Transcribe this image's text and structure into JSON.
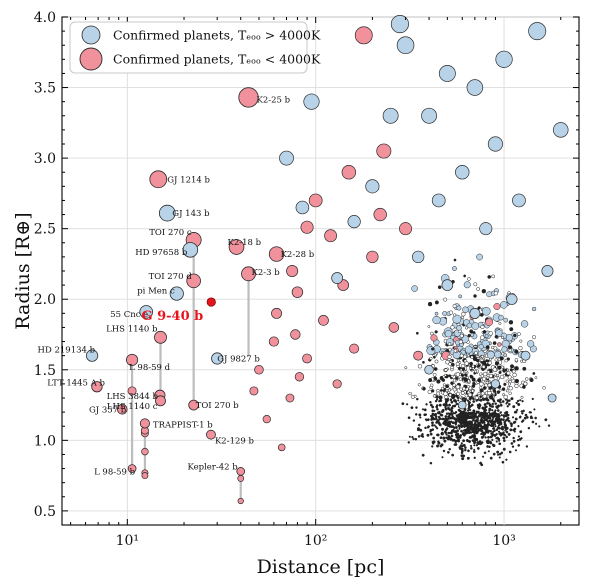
{
  "chart_data": {
    "type": "scatter",
    "x_scale": "log",
    "xlim": [
      4.5,
      2500
    ],
    "ylim": [
      0.4,
      4.0
    ],
    "grid": true,
    "xlabel": "Distance [pc]",
    "ylabel": "Radius [R⊕]",
    "xticks": [
      {
        "value": 10,
        "label": "10¹"
      },
      {
        "value": 100,
        "label": "10²"
      },
      {
        "value": 1000,
        "label": "10³"
      }
    ],
    "yticks": [
      0.5,
      1.0,
      1.5,
      2.0,
      2.5,
      3.0,
      3.5,
      4.0
    ],
    "legend": {
      "position": "top-left",
      "entries": [
        {
          "label": "Confirmed planets, Tₑₒₒ > 4000K",
          "color": "#b8d2e8"
        },
        {
          "label": "Confirmed planets, Tₑₒₒ < 4000K",
          "color": "#f0919c"
        }
      ]
    },
    "colors": {
      "hot": "#b8d2e8",
      "cool": "#f0919c",
      "highlight": "#e8141c",
      "edge": "#2b2b2b",
      "connector": "#bdbdbd"
    },
    "highlight": {
      "name": "G 9-40 b",
      "x": 27.9,
      "y": 1.98
    },
    "labeled_planets": [
      {
        "name": "K2-25 b",
        "x": 44,
        "y": 3.43,
        "cool": true
      },
      {
        "name": "GJ 1214 b",
        "x": 14.6,
        "y": 2.85,
        "cool": true
      },
      {
        "name": "GJ 143 b",
        "x": 16.3,
        "y": 2.61,
        "cool": false
      },
      {
        "name": "TOI 270 c",
        "x": 22.5,
        "y": 2.42,
        "cool": true
      },
      {
        "name": "HD 97658 b",
        "x": 21.6,
        "y": 2.35,
        "cool": false
      },
      {
        "name": "K2-18 b",
        "x": 38,
        "y": 2.37,
        "cool": true
      },
      {
        "name": "K2-28 b",
        "x": 62,
        "y": 2.32,
        "cool": true
      },
      {
        "name": "TOI 270 d",
        "x": 22.5,
        "y": 2.13,
        "cool": true
      },
      {
        "name": "K2-3 b",
        "x": 44,
        "y": 2.18,
        "cool": true
      },
      {
        "name": "pi Men c",
        "x": 18.3,
        "y": 2.04,
        "cool": false
      },
      {
        "name": "55 Cnc e",
        "x": 12.6,
        "y": 1.91,
        "cool": false
      },
      {
        "name": "LHS 1140 b",
        "x": 15.0,
        "y": 1.73,
        "cool": true
      },
      {
        "name": "GJ 9827 b",
        "x": 30,
        "y": 1.58,
        "cool": false
      },
      {
        "name": "HD 219134 b",
        "x": 6.5,
        "y": 1.6,
        "cool": false
      },
      {
        "name": "L 98-59 d",
        "x": 10.6,
        "y": 1.57,
        "cool": true
      },
      {
        "name": "LTT 1445 A b",
        "x": 6.9,
        "y": 1.38,
        "cool": true
      },
      {
        "name": "LHS 3844 b",
        "x": 14.9,
        "y": 1.32,
        "cool": true
      },
      {
        "name": "GJ 357 b",
        "x": 9.4,
        "y": 1.22,
        "cool": true
      },
      {
        "name": "LHS 1140 c",
        "x": 15.0,
        "y": 1.28,
        "cool": true
      },
      {
        "name": "TOI 270 b",
        "x": 22.5,
        "y": 1.25,
        "cool": true
      },
      {
        "name": "TRAPPIST-1 b",
        "x": 12.4,
        "y": 1.12,
        "cool": true
      },
      {
        "name": "K2-129 b",
        "x": 27.8,
        "y": 1.04,
        "cool": true
      },
      {
        "name": "L 98-59 b",
        "x": 10.6,
        "y": 0.8,
        "cool": true
      },
      {
        "name": "Kepler-42 b",
        "x": 40,
        "y": 0.78,
        "cool": true
      }
    ],
    "unlabeled_planets": [
      {
        "x": 12.4,
        "y": 1.05,
        "cool": true
      },
      {
        "x": 12.4,
        "y": 1.07,
        "cool": true
      },
      {
        "x": 12.4,
        "y": 0.92,
        "cool": true
      },
      {
        "x": 12.4,
        "y": 0.77,
        "cool": true
      },
      {
        "x": 12.4,
        "y": 0.75,
        "cool": true
      },
      {
        "x": 10.6,
        "y": 1.35,
        "cool": true
      },
      {
        "x": 40,
        "y": 0.73,
        "cool": true
      },
      {
        "x": 40,
        "y": 0.57,
        "cool": true
      },
      {
        "x": 180,
        "y": 3.87,
        "cool": true
      },
      {
        "x": 90,
        "y": 2.51,
        "cool": true
      },
      {
        "x": 75,
        "y": 2.2,
        "cool": true
      },
      {
        "x": 80,
        "y": 2.05,
        "cool": true
      },
      {
        "x": 62,
        "y": 1.9,
        "cool": true
      },
      {
        "x": 78,
        "y": 1.75,
        "cool": true
      },
      {
        "x": 90,
        "y": 1.58,
        "cool": true
      },
      {
        "x": 82,
        "y": 1.45,
        "cool": true
      },
      {
        "x": 73,
        "y": 1.3,
        "cool": true
      },
      {
        "x": 110,
        "y": 1.85,
        "cool": true
      },
      {
        "x": 150,
        "y": 2.9,
        "cool": true
      },
      {
        "x": 230,
        "y": 3.05,
        "cool": true
      },
      {
        "x": 100,
        "y": 2.7,
        "cool": true
      },
      {
        "x": 140,
        "y": 2.1,
        "cool": true
      },
      {
        "x": 200,
        "y": 2.3,
        "cool": true
      },
      {
        "x": 160,
        "y": 1.65,
        "cool": true
      },
      {
        "x": 130,
        "y": 1.4,
        "cool": true
      },
      {
        "x": 50,
        "y": 1.5,
        "cool": true
      },
      {
        "x": 55,
        "y": 1.15,
        "cool": true
      },
      {
        "x": 66,
        "y": 0.95,
        "cool": true
      },
      {
        "x": 300,
        "y": 2.5,
        "cool": true
      },
      {
        "x": 260,
        "y": 1.8,
        "cool": true
      },
      {
        "x": 60,
        "y": 1.7,
        "cool": true
      },
      {
        "x": 47,
        "y": 1.35,
        "cool": true
      },
      {
        "x": 120,
        "y": 2.45,
        "cool": true
      },
      {
        "x": 220,
        "y": 2.6,
        "cool": true
      },
      {
        "x": 350,
        "y": 1.6,
        "cool": true
      },
      {
        "x": 300,
        "y": 3.8,
        "cool": false
      },
      {
        "x": 500,
        "y": 3.6,
        "cool": false
      },
      {
        "x": 400,
        "y": 3.3,
        "cool": false
      },
      {
        "x": 700,
        "y": 3.5,
        "cool": false
      },
      {
        "x": 1000,
        "y": 3.7,
        "cool": false
      },
      {
        "x": 1500,
        "y": 3.9,
        "cool": false
      },
      {
        "x": 900,
        "y": 3.1,
        "cool": false
      },
      {
        "x": 600,
        "y": 2.9,
        "cool": false
      },
      {
        "x": 1200,
        "y": 2.7,
        "cool": false
      },
      {
        "x": 800,
        "y": 2.5,
        "cool": false
      },
      {
        "x": 450,
        "y": 2.7,
        "cool": false
      },
      {
        "x": 250,
        "y": 3.3,
        "cool": false
      },
      {
        "x": 200,
        "y": 2.8,
        "cool": false
      },
      {
        "x": 160,
        "y": 2.55,
        "cool": false
      },
      {
        "x": 130,
        "y": 2.15,
        "cool": false
      },
      {
        "x": 1700,
        "y": 2.2,
        "cool": false
      },
      {
        "x": 1100,
        "y": 2.0,
        "cool": false
      },
      {
        "x": 700,
        "y": 1.9,
        "cool": false
      },
      {
        "x": 500,
        "y": 2.1,
        "cool": false
      },
      {
        "x": 350,
        "y": 2.3,
        "cool": false
      },
      {
        "x": 95,
        "y": 3.4,
        "cool": false
      },
      {
        "x": 70,
        "y": 3.0,
        "cool": false
      },
      {
        "x": 2000,
        "y": 3.2,
        "cool": false
      },
      {
        "x": 1300,
        "y": 1.6,
        "cool": false
      },
      {
        "x": 900,
        "y": 1.4,
        "cool": false
      },
      {
        "x": 600,
        "y": 1.25,
        "cool": false
      },
      {
        "x": 400,
        "y": 1.5,
        "cool": false
      },
      {
        "x": 1800,
        "y": 1.3,
        "cool": false
      },
      {
        "x": 280,
        "y": 3.95,
        "cool": false
      },
      {
        "x": 85,
        "y": 2.65,
        "cool": false
      }
    ],
    "background_field": {
      "count": 1600,
      "x_range_pc": [
        35,
        2300
      ],
      "y_range_re": [
        0.45,
        4.0
      ],
      "density_peak_pc": 700,
      "density_peak_re": 1.2
    }
  }
}
